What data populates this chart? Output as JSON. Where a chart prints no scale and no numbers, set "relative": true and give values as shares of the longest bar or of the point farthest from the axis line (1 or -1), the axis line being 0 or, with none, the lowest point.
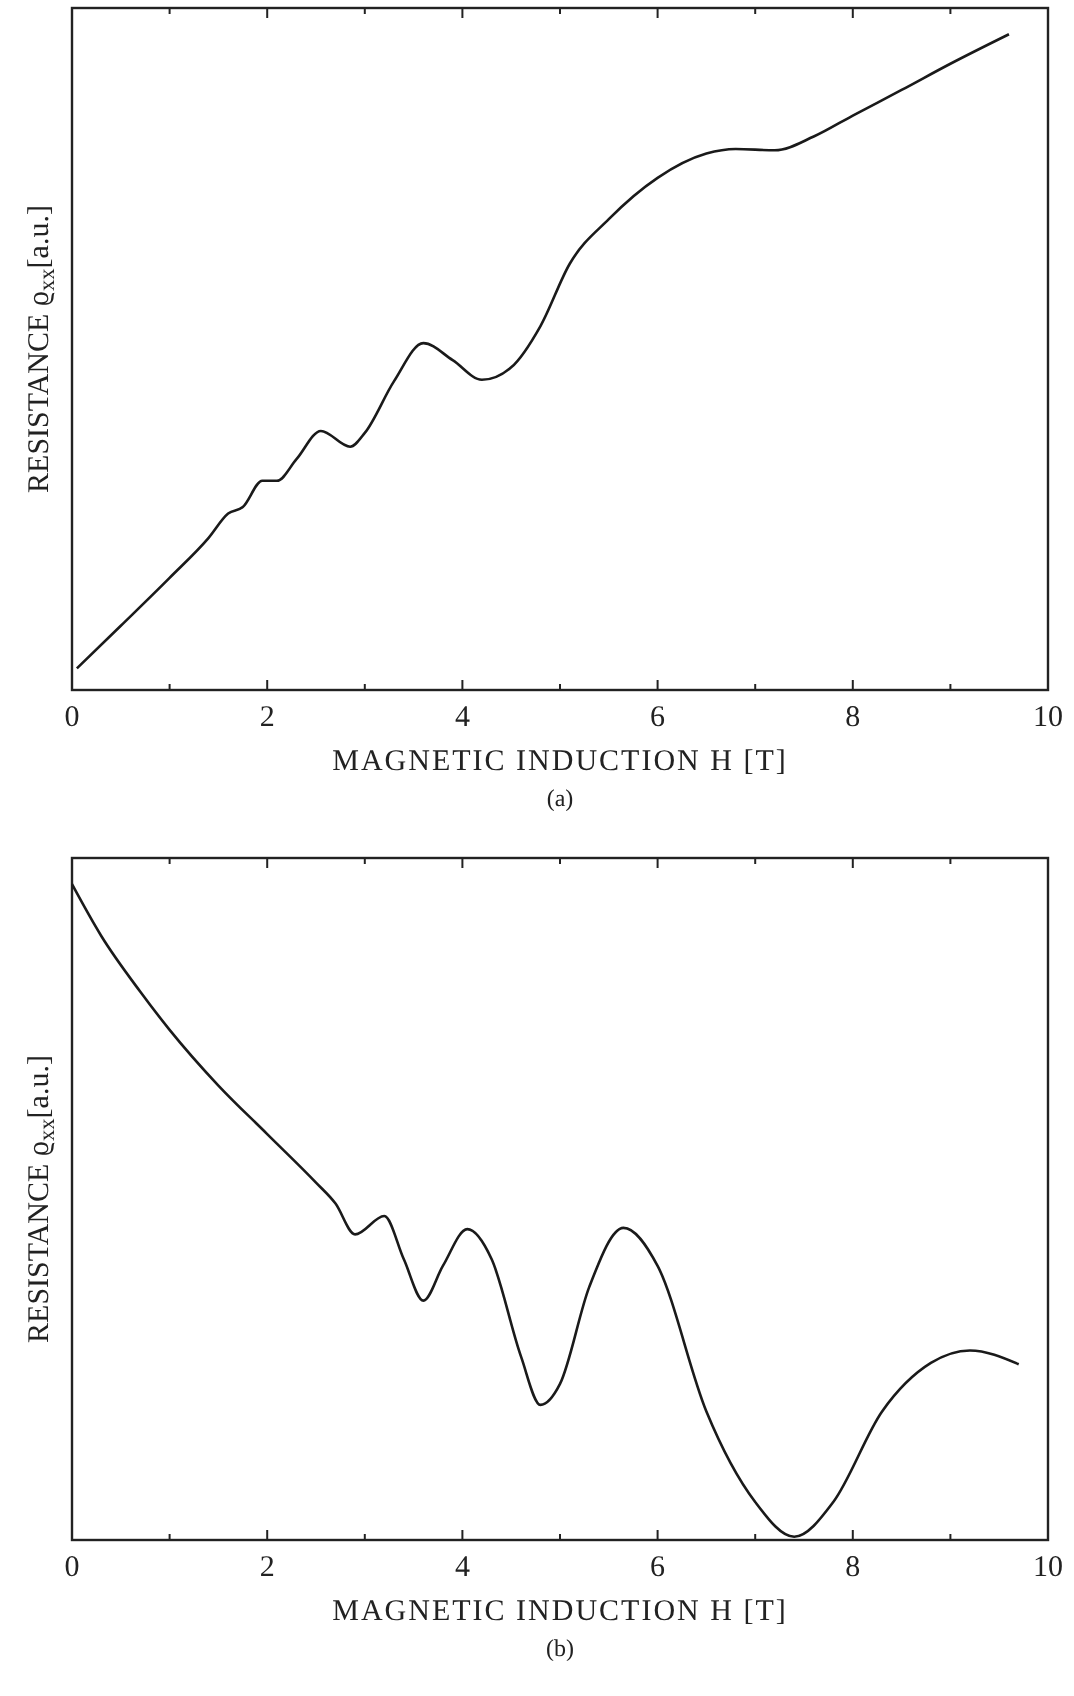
{
  "chart_data": [
    {
      "type": "line",
      "xlabel": "MAGNETIC INDUCTION H [T]",
      "ylabel": "RESISTANCE ϱ$_{xx}$[a.u.]",
      "annotations": [
        "(a)"
      ],
      "relative": true,
      "tick_labels": "x",
      "xlim": [
        0,
        10
      ],
      "xticks": [
        0,
        {
          "value": 1,
          "label": null
        },
        2,
        {
          "value": 3,
          "label": null
        },
        4,
        {
          "value": 5,
          "label": null
        },
        6,
        {
          "value": 7,
          "label": null
        },
        8,
        {
          "value": 9,
          "label": null
        },
        10
      ],
      "series": [
        {
          "color": "#1a1a1a",
          "x": [
            0.05,
            0.5,
            1.0,
            1.4,
            1.6,
            1.75,
            1.95,
            2.1,
            2.3,
            2.55,
            2.85,
            3.0,
            3.3,
            3.6,
            3.9,
            4.2,
            4.5,
            4.8,
            5.1,
            5.5,
            6.0,
            6.5,
            6.8,
            7.2,
            7.6,
            8.0,
            8.5,
            9.0,
            9.6
          ],
          "values": [
            0.033,
            0.098,
            0.171,
            0.232,
            0.269,
            0.279,
            0.319,
            0.319,
            0.352,
            0.395,
            0.371,
            0.392,
            0.471,
            0.529,
            0.503,
            0.473,
            0.492,
            0.555,
            0.65,
            0.718,
            0.781,
            0.818,
            0.825,
            0.823,
            0.844,
            0.876,
            0.915,
            0.955,
            1.0
          ]
        }
      ]
    },
    {
      "type": "line",
      "xlabel": "MAGNETIC INDUCTION H [T]",
      "ylabel": "RESISTANCE ϱ$_{xx}$[a.u.]",
      "annotations": [
        "(b)"
      ],
      "relative": true,
      "tick_labels": "x",
      "xlim": [
        0,
        10
      ],
      "xticks": [
        0,
        {
          "value": 1,
          "label": null
        },
        2,
        {
          "value": 3,
          "label": null
        },
        4,
        {
          "value": 5,
          "label": null
        },
        6,
        {
          "value": 7,
          "label": null
        },
        8,
        {
          "value": 9,
          "label": null
        },
        10
      ],
      "series": [
        {
          "color": "#1a1a1a",
          "x": [
            0,
            0.3,
            0.7,
            1.0,
            1.5,
            2.0,
            2.5,
            2.7,
            2.9,
            3.2,
            3.4,
            3.6,
            3.8,
            4.05,
            4.3,
            4.6,
            4.8,
            5.0,
            5.3,
            5.65,
            6.0,
            6.5,
            7.0,
            7.4,
            7.8,
            8.3,
            8.8,
            9.2,
            9.7
          ],
          "values": [
            1.0,
            0.921,
            0.836,
            0.778,
            0.693,
            0.619,
            0.545,
            0.513,
            0.466,
            0.494,
            0.428,
            0.365,
            0.418,
            0.474,
            0.428,
            0.28,
            0.206,
            0.238,
            0.386,
            0.476,
            0.418,
            0.196,
            0.058,
            0.005,
            0.058,
            0.196,
            0.27,
            0.289,
            0.268
          ]
        }
      ]
    }
  ]
}
